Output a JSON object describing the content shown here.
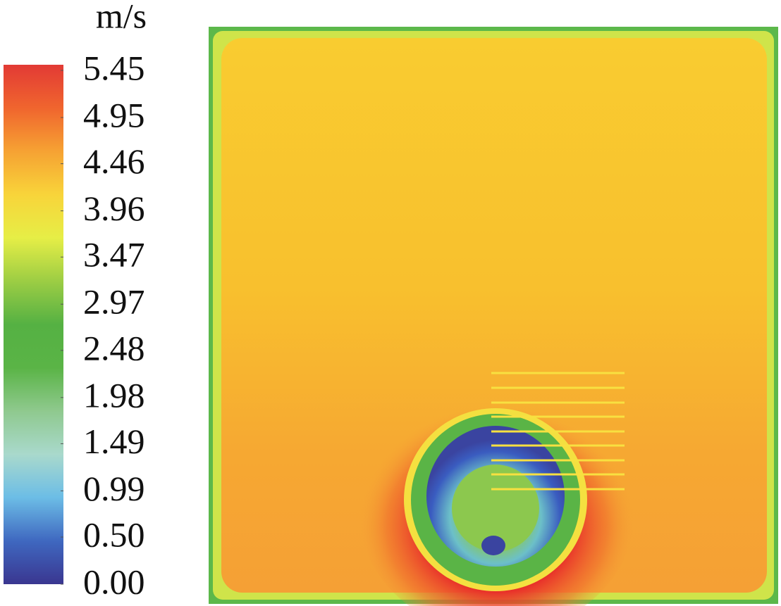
{
  "chart_data": {
    "type": "contour",
    "colorbar": {
      "title": "m/s",
      "zlim": [
        0,
        5.45
      ],
      "ticks": [
        {
          "value": 0,
          "label": "0.00"
        },
        {
          "value": 0.5,
          "label": "0.50"
        },
        0.99,
        1.49,
        1.98,
        2.48,
        2.97,
        3.47,
        3.96,
        4.46,
        4.95,
        5.45
      ],
      "colors": [
        "#3a3690",
        "#3f68c0",
        "#6cbde6",
        "#a9d9cc",
        "#8fc98e",
        "#5ab446",
        "#55b143",
        "#9ccd44",
        "#e6ee46",
        "#f8d43a",
        "#f6a233",
        "#f0652e",
        "#e23a35"
      ]
    }
  }
}
